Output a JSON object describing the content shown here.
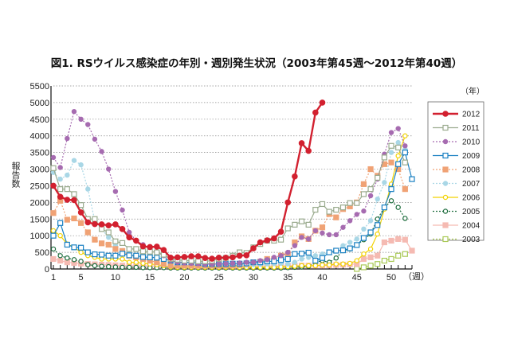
{
  "chart_data": {
    "type": "line",
    "title": "図1. RSウイルス感染症の年別・週別発生状況（2003年第45週〜2012年第40週）",
    "ylabel": "報告数",
    "xlabel": "（週）",
    "legend_title": "（年）",
    "legend_position": "right",
    "grid": "horizontal dotted",
    "ylim": [
      0,
      5500
    ],
    "yticks": [
      "0",
      "500",
      "1000",
      "1500",
      "2000",
      "2500",
      "3000",
      "3500",
      "4000",
      "4500",
      "5000",
      "5500"
    ],
    "xticks": [
      "1",
      "5",
      "10",
      "15",
      "20",
      "25",
      "30",
      "35",
      "40",
      "45",
      "50"
    ],
    "xlim": [
      1,
      53
    ],
    "series": [
      {
        "name": "2012",
        "color": "#d2202f",
        "dash": false,
        "marker": "circle-filled",
        "start": 1,
        "values": [
          2500,
          2170,
          2080,
          2070,
          1700,
          1400,
          1350,
          1340,
          1310,
          1340,
          1200,
          950,
          850,
          680,
          660,
          670,
          570,
          340,
          350,
          360,
          380,
          380,
          330,
          310,
          340,
          340,
          350,
          400,
          410,
          620,
          800,
          860,
          920,
          1120,
          2000,
          2780,
          3780,
          3550,
          4700,
          5000
        ]
      },
      {
        "name": "2011",
        "color": "#9aab8e",
        "dash": false,
        "marker": "square-open",
        "start": 1,
        "values": [
          3030,
          2400,
          2400,
          2250,
          1920,
          1500,
          1500,
          1200,
          1100,
          830,
          780,
          600,
          600,
          530,
          520,
          500,
          430,
          300,
          280,
          250,
          250,
          230,
          230,
          250,
          300,
          330,
          400,
          500,
          480,
          650,
          750,
          850,
          850,
          880,
          1220,
          1330,
          1430,
          1330,
          1780,
          1950,
          1720,
          1780,
          1850,
          1980,
          1980,
          2250,
          2400,
          2740,
          3350,
          3700,
          3650,
          3200
        ]
      },
      {
        "name": "2010",
        "color": "#a66bb0",
        "dash": true,
        "marker": "circle-filled",
        "start": 1,
        "values": [
          3350,
          3050,
          3920,
          4730,
          4500,
          4340,
          3900,
          3530,
          3000,
          2330,
          1770,
          1100,
          850,
          730,
          600,
          500,
          400,
          250,
          200,
          180,
          170,
          160,
          150,
          150,
          150,
          160,
          170,
          180,
          200,
          200,
          250,
          280,
          350,
          400,
          500,
          700,
          950,
          900,
          1150,
          1080,
          1030,
          1030,
          1250,
          1450,
          1640,
          1740,
          2200,
          2700,
          3450,
          4100,
          4220,
          3700
        ]
      },
      {
        "name": "2009",
        "color": "#1a80c2",
        "dash": false,
        "marker": "square-open",
        "start": 1,
        "values": [
          1000,
          1380,
          730,
          650,
          640,
          500,
          440,
          430,
          400,
          400,
          460,
          410,
          400,
          360,
          350,
          340,
          300,
          250,
          200,
          200,
          200,
          180,
          150,
          150,
          150,
          150,
          160,
          160,
          170,
          200,
          200,
          230,
          230,
          270,
          300,
          450,
          460,
          490,
          250,
          330,
          500,
          550,
          560,
          620,
          720,
          930,
          1100,
          1320,
          1850,
          2400,
          3150,
          3500,
          2700
        ]
      },
      {
        "name": "2008",
        "color": "#f0a275",
        "dash": true,
        "marker": "square-filled",
        "start": 1,
        "values": [
          1680,
          2050,
          1480,
          1520,
          1380,
          1100,
          880,
          770,
          730,
          600,
          540,
          400,
          350,
          300,
          250,
          200,
          150,
          100,
          100,
          100,
          100,
          100,
          100,
          100,
          100,
          100,
          100,
          120,
          150,
          200,
          220,
          300,
          300,
          400,
          450,
          800,
          980,
          900,
          1150,
          1250,
          1650,
          1550,
          1800,
          1880,
          2000,
          2550,
          3000,
          2800,
          3150,
          3200,
          3000,
          2400
        ]
      },
      {
        "name": "2007",
        "color": "#a9d7e6",
        "dash": true,
        "marker": "circle-filled",
        "start": 1,
        "values": [
          2900,
          2700,
          2820,
          3260,
          3130,
          2400,
          1450,
          1200,
          950,
          700,
          550,
          450,
          380,
          300,
          250,
          200,
          150,
          100,
          100,
          100,
          100,
          90,
          90,
          90,
          90,
          90,
          100,
          100,
          120,
          130,
          140,
          150,
          160,
          170,
          150,
          200,
          300,
          350,
          400,
          450,
          500,
          550,
          700,
          800,
          900,
          1200,
          1450,
          2100,
          2600,
          3500,
          3800,
          3600
        ]
      },
      {
        "name": "2006",
        "color": "#f2d200",
        "dash": false,
        "marker": "circle-open",
        "start": 1,
        "values": [
          1150,
          1000,
          750,
          650,
          500,
          400,
          350,
          300,
          300,
          300,
          300,
          200,
          200,
          170,
          150,
          130,
          100,
          60,
          50,
          50,
          50,
          50,
          50,
          50,
          50,
          50,
          50,
          50,
          50,
          50,
          50,
          50,
          50,
          60,
          70,
          80,
          100,
          100,
          100,
          120,
          120,
          150,
          150,
          170,
          250,
          450,
          600,
          1050,
          1800,
          2550,
          3400,
          4000
        ]
      },
      {
        "name": "2005",
        "color": "#1b6b3b",
        "dash": true,
        "marker": "circle-open",
        "start": 1,
        "values": [
          600,
          400,
          330,
          280,
          230,
          130,
          100,
          80,
          70,
          60,
          50,
          50,
          50,
          40,
          40,
          40,
          40,
          30,
          30,
          30,
          30,
          30,
          30,
          30,
          30,
          30,
          30,
          30,
          30,
          30,
          30,
          30,
          30,
          30,
          40,
          50,
          60,
          80,
          200,
          250,
          200,
          330,
          550,
          600,
          720,
          880,
          1050,
          1500,
          1850,
          2050,
          1850,
          1520
        ]
      },
      {
        "name": "2004",
        "color": "#f5bab2",
        "dash": false,
        "marker": "square-filled",
        "start": 1,
        "values": [
          300,
          250,
          200,
          180,
          160,
          150,
          140,
          130,
          120,
          110,
          100,
          100,
          100,
          90,
          90,
          90,
          80,
          80,
          80,
          80,
          80,
          80,
          80,
          80,
          80,
          80,
          80,
          80,
          80,
          90,
          90,
          90,
          90,
          90,
          100,
          100,
          100,
          100,
          100,
          100,
          110,
          120,
          130,
          140,
          150,
          300,
          350,
          400,
          800,
          850,
          900,
          880,
          550
        ]
      },
      {
        "name": "2003",
        "color": "#a9c955",
        "dash": true,
        "marker": "square-open",
        "start": 45,
        "values": [
          0,
          50,
          100,
          150,
          250,
          300,
          400,
          450
        ]
      }
    ]
  }
}
